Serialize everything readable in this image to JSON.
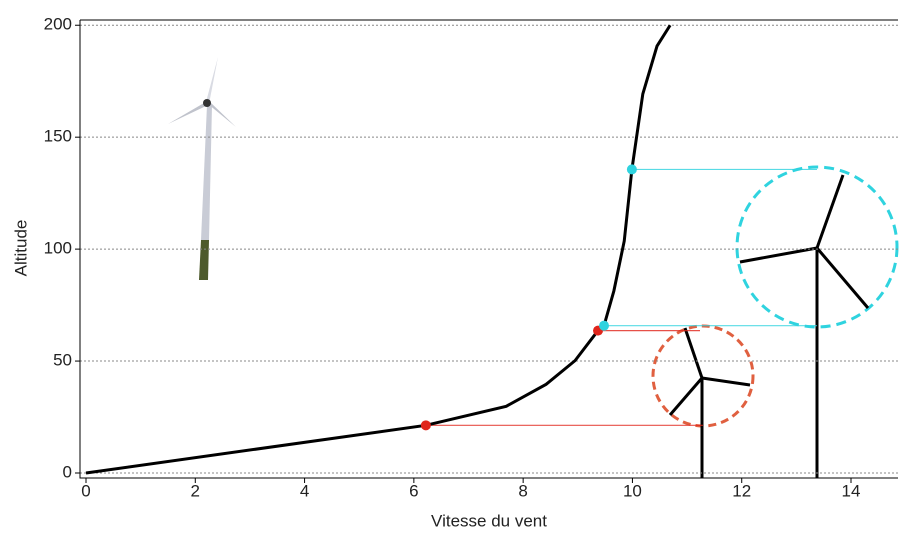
{
  "chart_data": {
    "type": "line",
    "x_label": "Vitesse du vent",
    "y_label": "Altitude",
    "x": [
      0,
      6.22,
      7.69,
      8.42,
      8.95,
      9.37,
      9.48,
      9.66,
      9.85,
      9.99,
      10.19,
      10.45,
      10.69
    ],
    "series": [
      {
        "color": "#000000",
        "values": [
          0,
          21.3,
          29.8,
          39.6,
          50.2,
          63.6,
          65.8,
          81.3,
          103.6,
          135.6,
          169.3,
          190.7,
          200
        ]
      }
    ],
    "markers": [
      {
        "x": 6.22,
        "y": 21.3,
        "color": "#e0251b"
      },
      {
        "x": 9.37,
        "y": 63.6,
        "color": "#e0251b"
      },
      {
        "x": 9.48,
        "y": 65.8,
        "color": "#2fd3df"
      },
      {
        "x": 9.99,
        "y": 135.6,
        "color": "#2fd3df"
      }
    ],
    "xlim": [
      0,
      14.86
    ],
    "ylim": [
      0,
      201
    ],
    "xticks": [
      0,
      2,
      4,
      6,
      8,
      10,
      12,
      14
    ],
    "yticks": [
      0,
      50,
      100,
      150,
      200
    ],
    "grid": true
  }
}
